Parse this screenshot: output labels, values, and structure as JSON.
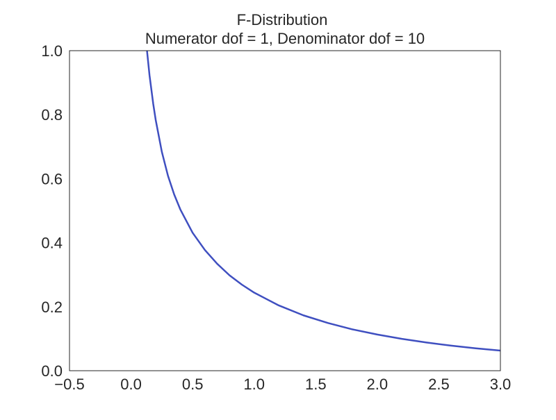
{
  "chart_data": {
    "type": "line",
    "title": "F-Distribution",
    "subtitle": "Numerator dof = 1, Denominator dof = 10",
    "xlabel": "",
    "ylabel": "",
    "xlim": [
      -0.5,
      3.0
    ],
    "ylim": [
      0.0,
      1.0
    ],
    "grid": false,
    "x_ticks": [
      -0.5,
      0.0,
      0.5,
      1.0,
      1.5,
      2.0,
      2.5,
      3.0
    ],
    "x_tick_labels": [
      "−0.5",
      "0.0",
      "0.5",
      "1.0",
      "1.5",
      "2.0",
      "2.5",
      "3.0"
    ],
    "y_ticks": [
      0.0,
      0.2,
      0.4,
      0.6,
      0.8,
      1.0
    ],
    "y_tick_labels": [
      "0.0",
      "0.2",
      "0.4",
      "0.6",
      "0.8",
      "1.0"
    ],
    "line_color": "#3f4fc0",
    "series": [
      {
        "x": [
          0.13,
          0.15,
          0.18,
          0.2,
          0.25,
          0.3,
          0.35,
          0.4,
          0.5,
          0.6,
          0.7,
          0.8,
          0.9,
          1.0,
          1.2,
          1.4,
          1.6,
          1.8,
          2.0,
          2.2,
          2.4,
          2.6,
          2.8,
          3.0
        ],
        "values": [
          0.998,
          0.923,
          0.834,
          0.784,
          0.684,
          0.609,
          0.551,
          0.504,
          0.431,
          0.377,
          0.334,
          0.298,
          0.269,
          0.244,
          0.204,
          0.173,
          0.149,
          0.129,
          0.113,
          0.0995,
          0.0881,
          0.0784,
          0.07,
          0.0629
        ]
      }
    ]
  }
}
